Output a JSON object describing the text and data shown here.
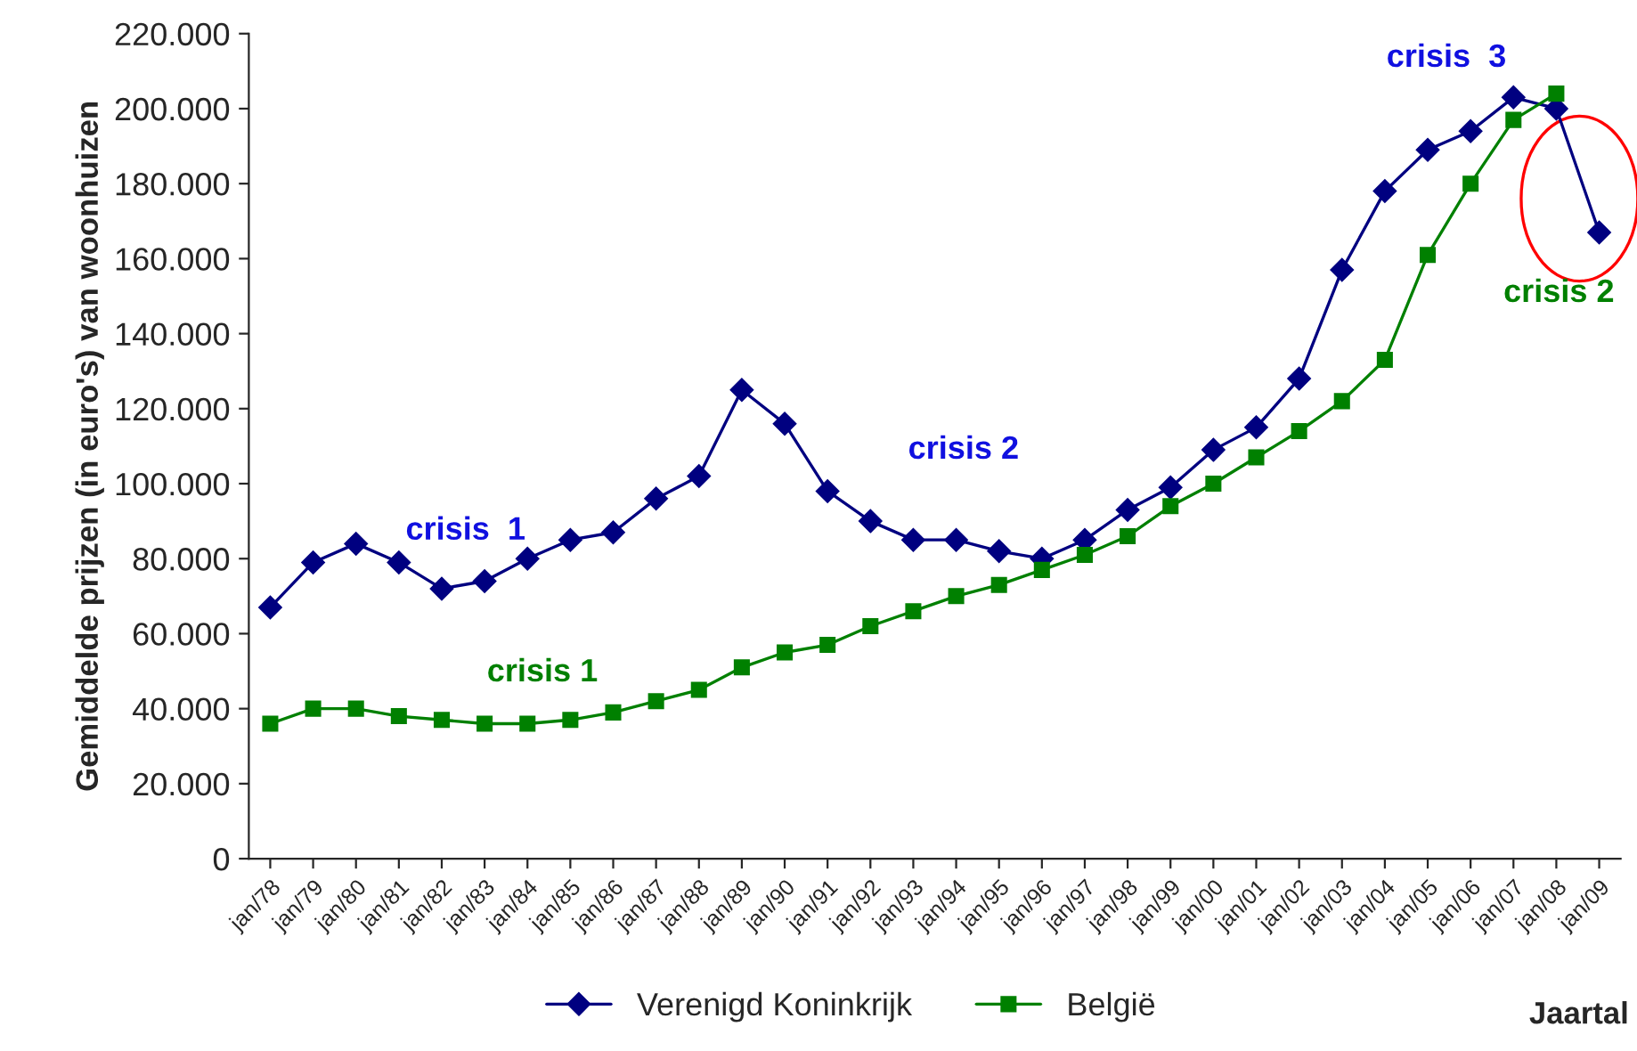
{
  "chart_data": {
    "type": "line",
    "ylabel": "Gemiddelde prijzen (in euro's) van woonhuizen",
    "xlabel": "Jaartal",
    "categories": [
      "jan/78",
      "jan/79",
      "jan/80",
      "jan/81",
      "jan/82",
      "jan/83",
      "jan/84",
      "jan/85",
      "jan/86",
      "jan/87",
      "jan/88",
      "jan/89",
      "jan/90",
      "jan/91",
      "jan/92",
      "jan/93",
      "jan/94",
      "jan/95",
      "jan/96",
      "jan/97",
      "jan/98",
      "jan/99",
      "jan/00",
      "jan/01",
      "jan/02",
      "jan/03",
      "jan/04",
      "jan/05",
      "jan/06",
      "jan/07",
      "jan/08",
      "jan/09"
    ],
    "series": [
      {
        "name": "Verenigd Koninkrijk",
        "color": "#000080",
        "marker": "diamond",
        "values": [
          67000,
          79000,
          84000,
          79000,
          72000,
          74000,
          80000,
          85000,
          87000,
          96000,
          102000,
          125000,
          116000,
          98000,
          90000,
          85000,
          85000,
          82000,
          80000,
          85000,
          93000,
          99000,
          109000,
          115000,
          128000,
          157000,
          178000,
          189000,
          194000,
          203000,
          200000,
          167000
        ]
      },
      {
        "name": "België",
        "color": "#008000",
        "marker": "square",
        "values": [
          36000,
          40000,
          40000,
          38000,
          37000,
          36000,
          36000,
          37000,
          39000,
          42000,
          45000,
          51000,
          55000,
          57000,
          62000,
          66000,
          70000,
          73000,
          77000,
          81000,
          86000,
          94000,
          100000,
          107000,
          114000,
          122000,
          133000,
          161000,
          180000,
          197000,
          204000,
          null
        ]
      }
    ],
    "ylim": [
      0,
      220000
    ],
    "yticks": [
      {
        "value": 0,
        "label": "0"
      },
      {
        "value": 20000,
        "label": "20.000"
      },
      {
        "value": 40000,
        "label": "40.000"
      },
      {
        "value": 60000,
        "label": "60.000"
      },
      {
        "value": 80000,
        "label": "80.000"
      },
      {
        "value": 100000,
        "label": "100.000"
      },
      {
        "value": 120000,
        "label": "120.000"
      },
      {
        "value": 140000,
        "label": "140.000"
      },
      {
        "value": 160000,
        "label": "160.000"
      },
      {
        "value": 180000,
        "label": "180.000"
      },
      {
        "value": 200000,
        "label": "200.000"
      },
      {
        "value": 220000,
        "label": "220.000"
      }
    ],
    "annotations": [
      "crisis  1",
      "crisis 2",
      "crisis  3",
      "crisis 1",
      "crisis 2"
    ],
    "grid": false,
    "legend": "bottom",
    "line_style": "solid"
  }
}
